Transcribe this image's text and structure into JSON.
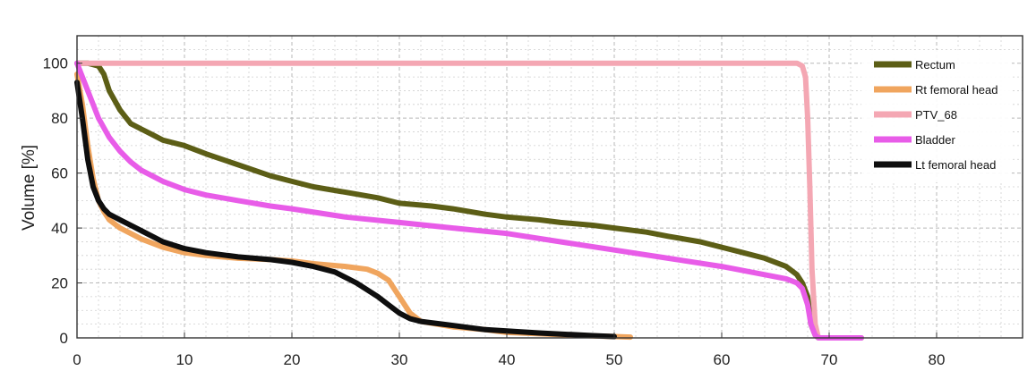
{
  "chart_data": {
    "type": "line",
    "title": "",
    "xlabel": "",
    "ylabel": "Volume [%]",
    "xlim": [
      0,
      88
    ],
    "ylim": [
      0,
      110
    ],
    "xticks": [
      0,
      10,
      20,
      30,
      40,
      50,
      60,
      70,
      80
    ],
    "yticks": [
      0,
      20,
      40,
      60,
      80,
      100
    ],
    "grid": true,
    "legend_position": "top-right",
    "series": [
      {
        "name": "Rectum",
        "color": "#5c5e16",
        "x": [
          0,
          1,
          2,
          2.5,
          3,
          4,
          5,
          6,
          7,
          8,
          10,
          12,
          15,
          18,
          20,
          22,
          25,
          28,
          30,
          33,
          35,
          38,
          40,
          43,
          45,
          48,
          50,
          53,
          55,
          58,
          60,
          62,
          64,
          66,
          67,
          67.5,
          68,
          68.3,
          68.7,
          69,
          70,
          72,
          73
        ],
        "y": [
          100,
          100,
          99,
          96,
          90,
          83,
          78,
          76,
          74,
          72,
          70,
          67,
          63,
          59,
          57,
          55,
          53,
          51,
          49,
          48,
          47,
          45,
          44,
          43,
          42,
          41,
          40,
          38.5,
          37,
          35,
          33,
          31,
          29,
          26,
          23,
          20,
          15,
          5,
          1,
          0,
          0,
          0,
          0
        ]
      },
      {
        "name": "Rt femoral head",
        "color": "#f0a55e",
        "x": [
          0,
          0.5,
          1,
          1.5,
          2,
          2.5,
          3,
          4,
          5,
          6,
          8,
          10,
          12,
          15,
          18,
          20,
          22,
          25,
          27,
          28,
          29,
          30,
          31,
          32,
          35,
          38,
          40,
          43,
          46,
          48,
          50,
          51.5
        ],
        "y": [
          96,
          85,
          70,
          58,
          50,
          46,
          43,
          40,
          38,
          36,
          33,
          31,
          30,
          29,
          28.5,
          28,
          27,
          26,
          25,
          23.5,
          21,
          15,
          9,
          6,
          4,
          3,
          2,
          1.5,
          1,
          0.7,
          0.5,
          0.3
        ]
      },
      {
        "name": "PTV_68",
        "color": "#f4a7b3",
        "x": [
          0,
          10,
          20,
          30,
          40,
          50,
          60,
          67,
          67.5,
          67.8,
          68,
          68.2,
          68.4,
          68.7,
          69,
          70,
          72,
          73
        ],
        "y": [
          100,
          100,
          100,
          100,
          100,
          100,
          100,
          100,
          99,
          95,
          80,
          55,
          25,
          5,
          0,
          0,
          0,
          0
        ]
      },
      {
        "name": "Bladder",
        "color": "#e85ce8",
        "x": [
          0,
          0.5,
          1,
          1.5,
          2,
          3,
          4,
          5,
          6,
          8,
          10,
          12,
          15,
          18,
          20,
          25,
          30,
          35,
          40,
          45,
          50,
          55,
          60,
          64,
          66,
          67,
          67.5,
          68,
          68.3,
          68.7,
          69,
          70,
          72,
          73
        ],
        "y": [
          100,
          95,
          90,
          85,
          80,
          73,
          68,
          64,
          61,
          57,
          54,
          52,
          50,
          48,
          47,
          44,
          42,
          40,
          38,
          35,
          32,
          29,
          26,
          23,
          21.5,
          20,
          18,
          12,
          5,
          1,
          0,
          0,
          0,
          0
        ]
      },
      {
        "name": "Lt femoral head",
        "color": "#0e0e0e",
        "x": [
          0,
          0.5,
          1,
          1.5,
          2,
          2.5,
          3,
          4,
          5,
          6,
          8,
          10,
          12,
          15,
          18,
          20,
          22,
          24,
          26,
          28,
          29,
          30,
          31,
          32,
          34,
          36,
          38,
          40,
          43,
          46,
          48,
          50
        ],
        "y": [
          93,
          80,
          65,
          55,
          50,
          47,
          45,
          43,
          41,
          39,
          35,
          32.5,
          31,
          29.5,
          28.5,
          27.5,
          26,
          24,
          20,
          15,
          12,
          9,
          7,
          6,
          5,
          4,
          3,
          2.5,
          1.8,
          1.2,
          0.8,
          0.5
        ]
      }
    ]
  }
}
